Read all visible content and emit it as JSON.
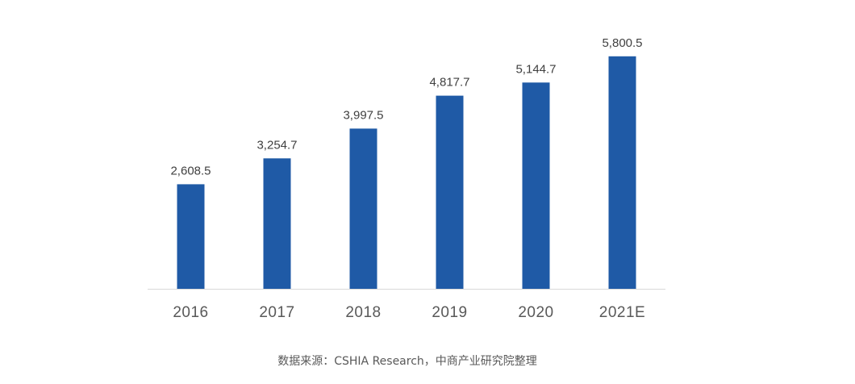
{
  "chart_data": {
    "type": "bar",
    "categories": [
      "2016",
      "2017",
      "2018",
      "2019",
      "2020",
      "2021E"
    ],
    "values": [
      2608.5,
      3254.7,
      3997.5,
      4817.7,
      5144.7,
      5800.5
    ],
    "value_labels": [
      "2,608.5",
      "3,254.7",
      "3,997.5",
      "4,817.7",
      "5,144.7",
      "5,800.5"
    ],
    "title": "",
    "xlabel": "",
    "ylabel": "",
    "ylim": [
      0,
      6500
    ],
    "grid": false,
    "legend": "none",
    "bar_color": "#1F5AA6",
    "axis_color": "#D9D9D9",
    "label_color": "#404040",
    "tick_color": "#595959"
  },
  "source": "数据来源：CSHIA Research，中商产业研究院整理"
}
